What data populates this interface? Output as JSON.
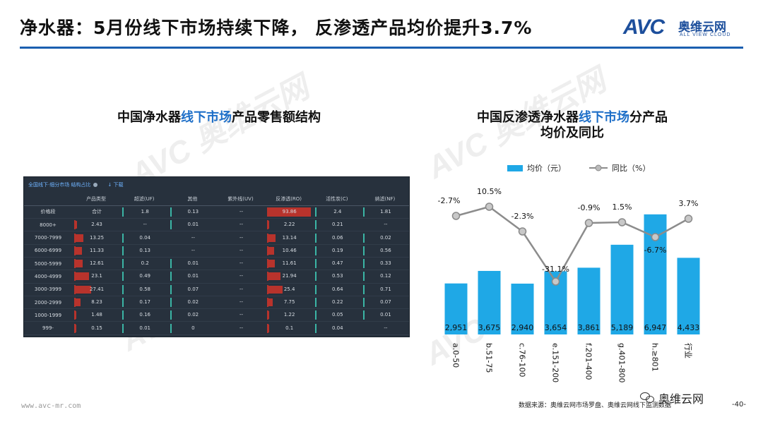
{
  "title": "净水器：5月份线下市场持续下降， 反渗透产品均价提升3.7%",
  "logo": {
    "brand": "AVC",
    "cn": "奥维云网",
    "en": "ALL VIEW CLOUD"
  },
  "watermark": {
    "brand": "AVC",
    "cn": "奥维云网",
    "en": "ALL VIEW CLOUD"
  },
  "left": {
    "title_pre": "中国净水器",
    "title_hl": "线下市场",
    "title_post": "产品零售额结构",
    "bar_label": "全国线下·细分市场 结构占比",
    "download": "下载",
    "headers": [
      "产品类型",
      "超滤(UF)",
      "其他",
      "紫外线(UV)",
      "反渗透(RO)",
      "活性炭(C)",
      "纳滤(NF)"
    ],
    "rows": [
      {
        "label": "价格段",
        "cells": [
          "合计",
          "1.8",
          "0.13",
          "--",
          "93.86",
          "2.4",
          "1.81"
        ]
      },
      {
        "label": "8000+",
        "cells": [
          "2.43",
          "--",
          "0.01",
          "--",
          "2.22",
          "0.21",
          "--"
        ]
      },
      {
        "label": "7000-7999",
        "cells": [
          "13.25",
          "0.04",
          "--",
          "--",
          "13.14",
          "0.06",
          "0.02"
        ]
      },
      {
        "label": "6000-6999",
        "cells": [
          "11.33",
          "0.13",
          "--",
          "--",
          "10.46",
          "0.19",
          "0.56"
        ]
      },
      {
        "label": "5000-5999",
        "cells": [
          "12.61",
          "0.2",
          "0.01",
          "--",
          "11.61",
          "0.47",
          "0.33"
        ]
      },
      {
        "label": "4000-4999",
        "cells": [
          "23.1",
          "0.49",
          "0.01",
          "--",
          "21.94",
          "0.53",
          "0.12"
        ]
      },
      {
        "label": "3000-3999",
        "cells": [
          "27.41",
          "0.58",
          "0.07",
          "--",
          "25.4",
          "0.64",
          "0.71"
        ]
      },
      {
        "label": "2000-2999",
        "cells": [
          "8.23",
          "0.17",
          "0.02",
          "--",
          "7.75",
          "0.22",
          "0.07"
        ]
      },
      {
        "label": "1000-1999",
        "cells": [
          "1.48",
          "0.16",
          "0.02",
          "--",
          "1.22",
          "0.05",
          "0.01"
        ]
      },
      {
        "label": "999-",
        "cells": [
          "0.15",
          "0.01",
          "0",
          "--",
          "0.1",
          "0.04",
          "--"
        ]
      }
    ]
  },
  "right": {
    "title_pre": "中国反渗透净水器",
    "title_hl": "线下市场",
    "title_post": "分产品",
    "title_line2": "均价及同比"
  },
  "chart_data": {
    "type": "bar",
    "categories": [
      "a.0-50",
      "b.51-75",
      "c.76-100",
      "e.151-200",
      "f.201-400",
      "g.401-800",
      "h.≥801",
      "行业"
    ],
    "series": [
      {
        "name": "均价（元）",
        "type": "bar",
        "values": [
          2951,
          3675,
          2940,
          3654,
          3861,
          5189,
          6947,
          4433
        ],
        "labels": [
          "2,951",
          "3,675",
          "2,940",
          "3,654",
          "3,861",
          "5,189",
          "6,947",
          "4,433"
        ],
        "color": "#1fa8e6"
      },
      {
        "name": "同比（%）",
        "type": "line",
        "values": [
          -2.7,
          10.5,
          -2.3,
          -31.1,
          -0.9,
          1.5,
          -6.7,
          3.7
        ],
        "labels": [
          "-2.7%",
          "10.5%",
          "-2.3%",
          "-31.1%",
          "-0.9%",
          "1.5%",
          "-6.7%",
          "3.7%"
        ],
        "color": "#8c8c8c"
      }
    ],
    "legend": "top"
  },
  "footer": {
    "url": "www.avc-mr.com",
    "source": "数据来源：奥维云网市场罗盘、奥维云网线下监测数据",
    "page": "-40-",
    "wechat": "奥维云网"
  }
}
